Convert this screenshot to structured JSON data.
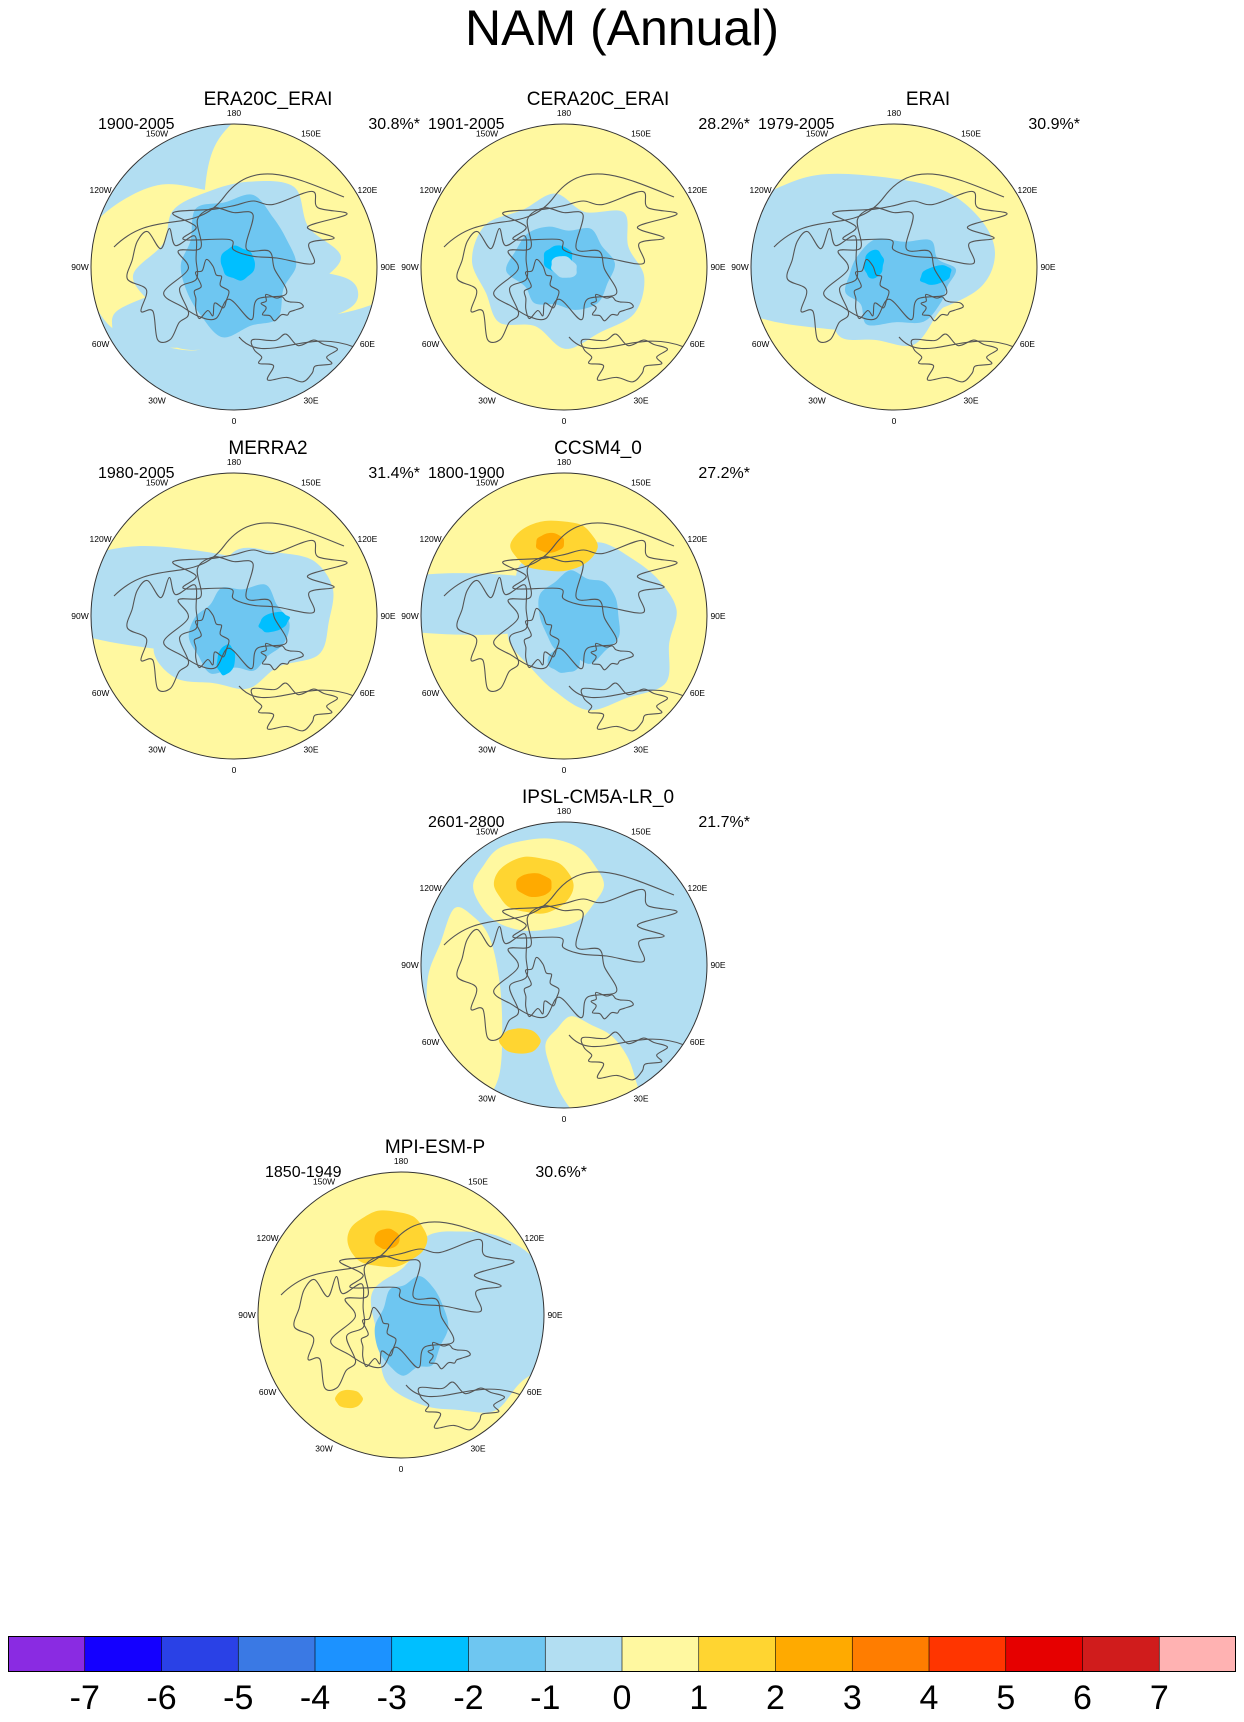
{
  "figure": {
    "title": "NAM (Annual)"
  },
  "chart_data": {
    "type": "heatmap",
    "projection": "north polar stereographic",
    "longitude_labels": [
      "180",
      "150E",
      "120E",
      "90E",
      "60E",
      "30E",
      "0",
      "30W",
      "60W",
      "90W",
      "120W",
      "150W"
    ],
    "panels": [
      {
        "name": "ERA20C_ERAI",
        "period": "1900-2005",
        "variance": "30.8%*",
        "pattern": "era20c"
      },
      {
        "name": "CERA20C_ERAI",
        "period": "1901-2005",
        "variance": "28.2%*",
        "pattern": "cera20c"
      },
      {
        "name": "ERAI",
        "period": "1979-2005",
        "variance": "30.9%*",
        "pattern": "erai"
      },
      {
        "name": "MERRA2",
        "period": "1980-2005",
        "variance": "31.4%*",
        "pattern": "merra2"
      },
      {
        "name": "CCSM4_0",
        "period": "1800-1900",
        "variance": "27.2%*",
        "pattern": "ccsm4"
      },
      {
        "name": "IPSL-CM5A-LR_0",
        "period": "2601-2800",
        "variance": "21.7%*",
        "pattern": "ipsl"
      },
      {
        "name": "MPI-ESM-P",
        "period": "1850-1949",
        "variance": "30.6%*",
        "pattern": "mpi"
      }
    ],
    "colorbar": {
      "levels": [
        -7,
        -6,
        -5,
        -4,
        -3,
        -2,
        -1,
        0,
        1,
        2,
        3,
        4,
        5,
        6,
        7
      ],
      "colors": [
        "#8a2be2",
        "#1400ff",
        "#2a41e6",
        "#3a79e4",
        "#1c92ff",
        "#00bfff",
        "#6ec6f1",
        "#b2def2",
        "#fff8a0",
        "#ffd531",
        "#ffaa00",
        "#ff7d00",
        "#ff3500",
        "#e60000",
        "#d01c1c",
        "#ffb2b2"
      ],
      "labels": [
        "-7",
        "-6",
        "-5",
        "-4",
        "-3",
        "-2",
        "-1",
        "0",
        "1",
        "2",
        "3",
        "4",
        "5",
        "6",
        "7"
      ]
    }
  }
}
